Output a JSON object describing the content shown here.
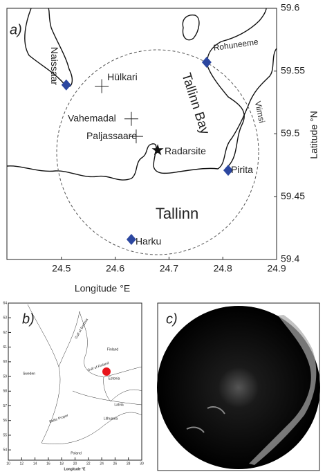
{
  "panel_a": {
    "label": "a)",
    "xlim": [
      24.4,
      24.9
    ],
    "ylim": [
      59.4,
      59.6
    ],
    "xticks": [
      24.5,
      24.6,
      24.7,
      24.8,
      24.9
    ],
    "yticks": [
      59.4,
      59.45,
      59.5,
      59.55,
      59.6
    ],
    "xlabel": "Longitude °E",
    "ylabel": "Latitude °N",
    "sites": [
      {
        "name": "Naissaar",
        "marker": "diamond",
        "lon": 24.509,
        "lat": 59.539
      },
      {
        "name": "Rohuneeme",
        "marker": "diamond",
        "lon": 24.77,
        "lat": 59.557
      },
      {
        "name": "Pirita",
        "marker": "diamond",
        "lon": 24.81,
        "lat": 59.471
      },
      {
        "name": "Harku",
        "marker": "diamond",
        "lon": 24.63,
        "lat": 59.416
      },
      {
        "name": "Hülkari",
        "marker": "cross",
        "lon": 24.575,
        "lat": 59.538
      },
      {
        "name": "Vahemadal",
        "marker": "cross",
        "lon": 24.63,
        "lat": 59.512
      },
      {
        "name": "Paljassaare",
        "marker": "cross",
        "lon": 24.639,
        "lat": 59.498
      },
      {
        "name": "Radarsite",
        "marker": "star",
        "lon": 24.679,
        "lat": 59.487
      }
    ],
    "areas": [
      "Tallinn Bay",
      "Tallinn",
      "Viimsi"
    ]
  },
  "panel_b": {
    "label": "b)",
    "xlim": [
      10,
      30
    ],
    "ylim": [
      53.3,
      64
    ],
    "xticks": [
      10,
      12,
      14,
      16,
      18,
      20,
      22,
      24,
      26,
      28,
      30
    ],
    "yticks": [
      54,
      55,
      56,
      57,
      58,
      59,
      60,
      61,
      62,
      63,
      64
    ],
    "xlabel": "Longitude °E",
    "regions": [
      "Sweden",
      "Finland",
      "Estonia",
      "Latvia",
      "Lithuania",
      "Poland",
      "Gulf of Bothnia",
      "Gulf of Finland",
      "Baltic Proper"
    ]
  },
  "panel_c": {
    "label": "c)"
  }
}
